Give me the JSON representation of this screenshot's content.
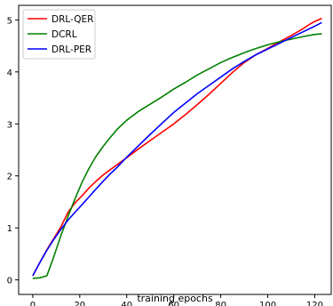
{
  "chart_data": {
    "type": "line",
    "title": "",
    "xlabel": "training epochs",
    "ylabel": "",
    "xlim": [
      -6,
      127
    ],
    "ylim": [
      -0.28,
      5.28
    ],
    "xticks": [
      0,
      20,
      40,
      60,
      80,
      100,
      120
    ],
    "yticks": [
      0,
      1,
      2,
      3,
      4,
      5
    ],
    "grid": false,
    "legend_position": "top-left",
    "series": [
      {
        "name": "DRL-QER",
        "color": "#ff0000",
        "x": [
          0,
          3,
          6,
          9,
          12,
          15,
          18,
          21,
          24,
          27,
          30,
          33,
          36,
          40,
          45,
          50,
          55,
          60,
          65,
          70,
          75,
          80,
          85,
          90,
          95,
          100,
          105,
          110,
          115,
          118,
          120,
          123
        ],
        "y": [
          0.08,
          0.33,
          0.58,
          0.8,
          1.02,
          1.3,
          1.48,
          1.62,
          1.77,
          1.9,
          2.02,
          2.12,
          2.22,
          2.35,
          2.52,
          2.68,
          2.84,
          3.0,
          3.18,
          3.37,
          3.57,
          3.78,
          3.99,
          4.18,
          4.33,
          4.45,
          4.58,
          4.7,
          4.83,
          4.92,
          4.97,
          5.03
        ]
      },
      {
        "name": "DCRL",
        "color": "#008000",
        "x": [
          0,
          3,
          6,
          9,
          12,
          15,
          18,
          21,
          24,
          27,
          30,
          33,
          36,
          40,
          45,
          50,
          55,
          60,
          65,
          70,
          75,
          80,
          85,
          90,
          95,
          100,
          105,
          110,
          115,
          120,
          123
        ],
        "y": [
          0.03,
          0.04,
          0.08,
          0.45,
          0.85,
          1.22,
          1.56,
          1.88,
          2.15,
          2.38,
          2.57,
          2.74,
          2.9,
          3.07,
          3.24,
          3.38,
          3.52,
          3.67,
          3.8,
          3.94,
          4.06,
          4.18,
          4.28,
          4.37,
          4.45,
          4.52,
          4.58,
          4.63,
          4.68,
          4.72,
          4.73
        ]
      },
      {
        "name": "DRL-PER",
        "color": "#0000ff",
        "x": [
          0,
          3,
          6,
          9,
          12,
          15,
          18,
          21,
          24,
          27,
          30,
          33,
          36,
          40,
          45,
          50,
          55,
          60,
          65,
          70,
          75,
          80,
          85,
          90,
          95,
          100,
          105,
          110,
          115,
          120,
          123
        ],
        "y": [
          0.08,
          0.33,
          0.57,
          0.78,
          0.97,
          1.15,
          1.3,
          1.45,
          1.6,
          1.75,
          1.9,
          2.04,
          2.17,
          2.36,
          2.58,
          2.8,
          3.01,
          3.22,
          3.4,
          3.58,
          3.74,
          3.9,
          4.06,
          4.2,
          4.33,
          4.44,
          4.55,
          4.66,
          4.77,
          4.88,
          4.95
        ]
      }
    ]
  }
}
